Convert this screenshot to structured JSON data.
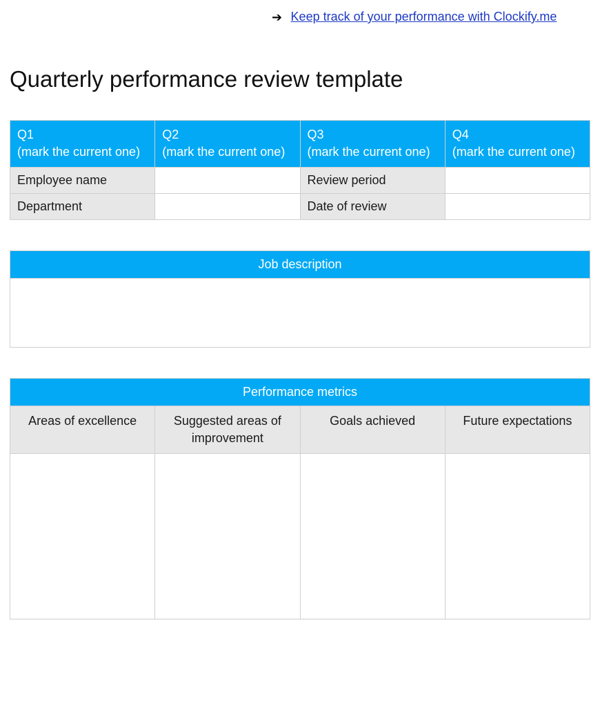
{
  "colors": {
    "header_blue": "#03a9f4",
    "header_text": "#ffffff",
    "label_gray": "#e7e7e7",
    "border_gray": "#cfcfcf",
    "link_blue": "#1d39c4",
    "body_text": "#1a1a1a",
    "background": "#ffffff"
  },
  "top_link": {
    "arrow": "➔",
    "text": "Keep track of your performance with Clockify.me"
  },
  "title": "Quarterly performance review template",
  "quarter_table": {
    "headers": [
      {
        "line1": "Q1",
        "line2": "(mark the current one)"
      },
      {
        "line1": "Q2",
        "line2": "(mark the current one)"
      },
      {
        "line1": "Q3",
        "line2": "(mark the current one)"
      },
      {
        "line1": "Q4",
        "line2": "(mark the current one)"
      }
    ],
    "rows": [
      {
        "label_left": "Employee name",
        "value_left": "",
        "label_right": "Review period",
        "value_right": ""
      },
      {
        "label_left": "Department",
        "value_left": "",
        "label_right": "Date of review",
        "value_right": ""
      }
    ]
  },
  "job_description": {
    "title": "Job description",
    "body": ""
  },
  "performance_metrics": {
    "title": "Performance metrics",
    "columns": [
      "Areas of excellence",
      "Suggested areas of improvement",
      "Goals achieved",
      "Future expectations"
    ],
    "values": [
      "",
      "",
      "",
      ""
    ]
  }
}
